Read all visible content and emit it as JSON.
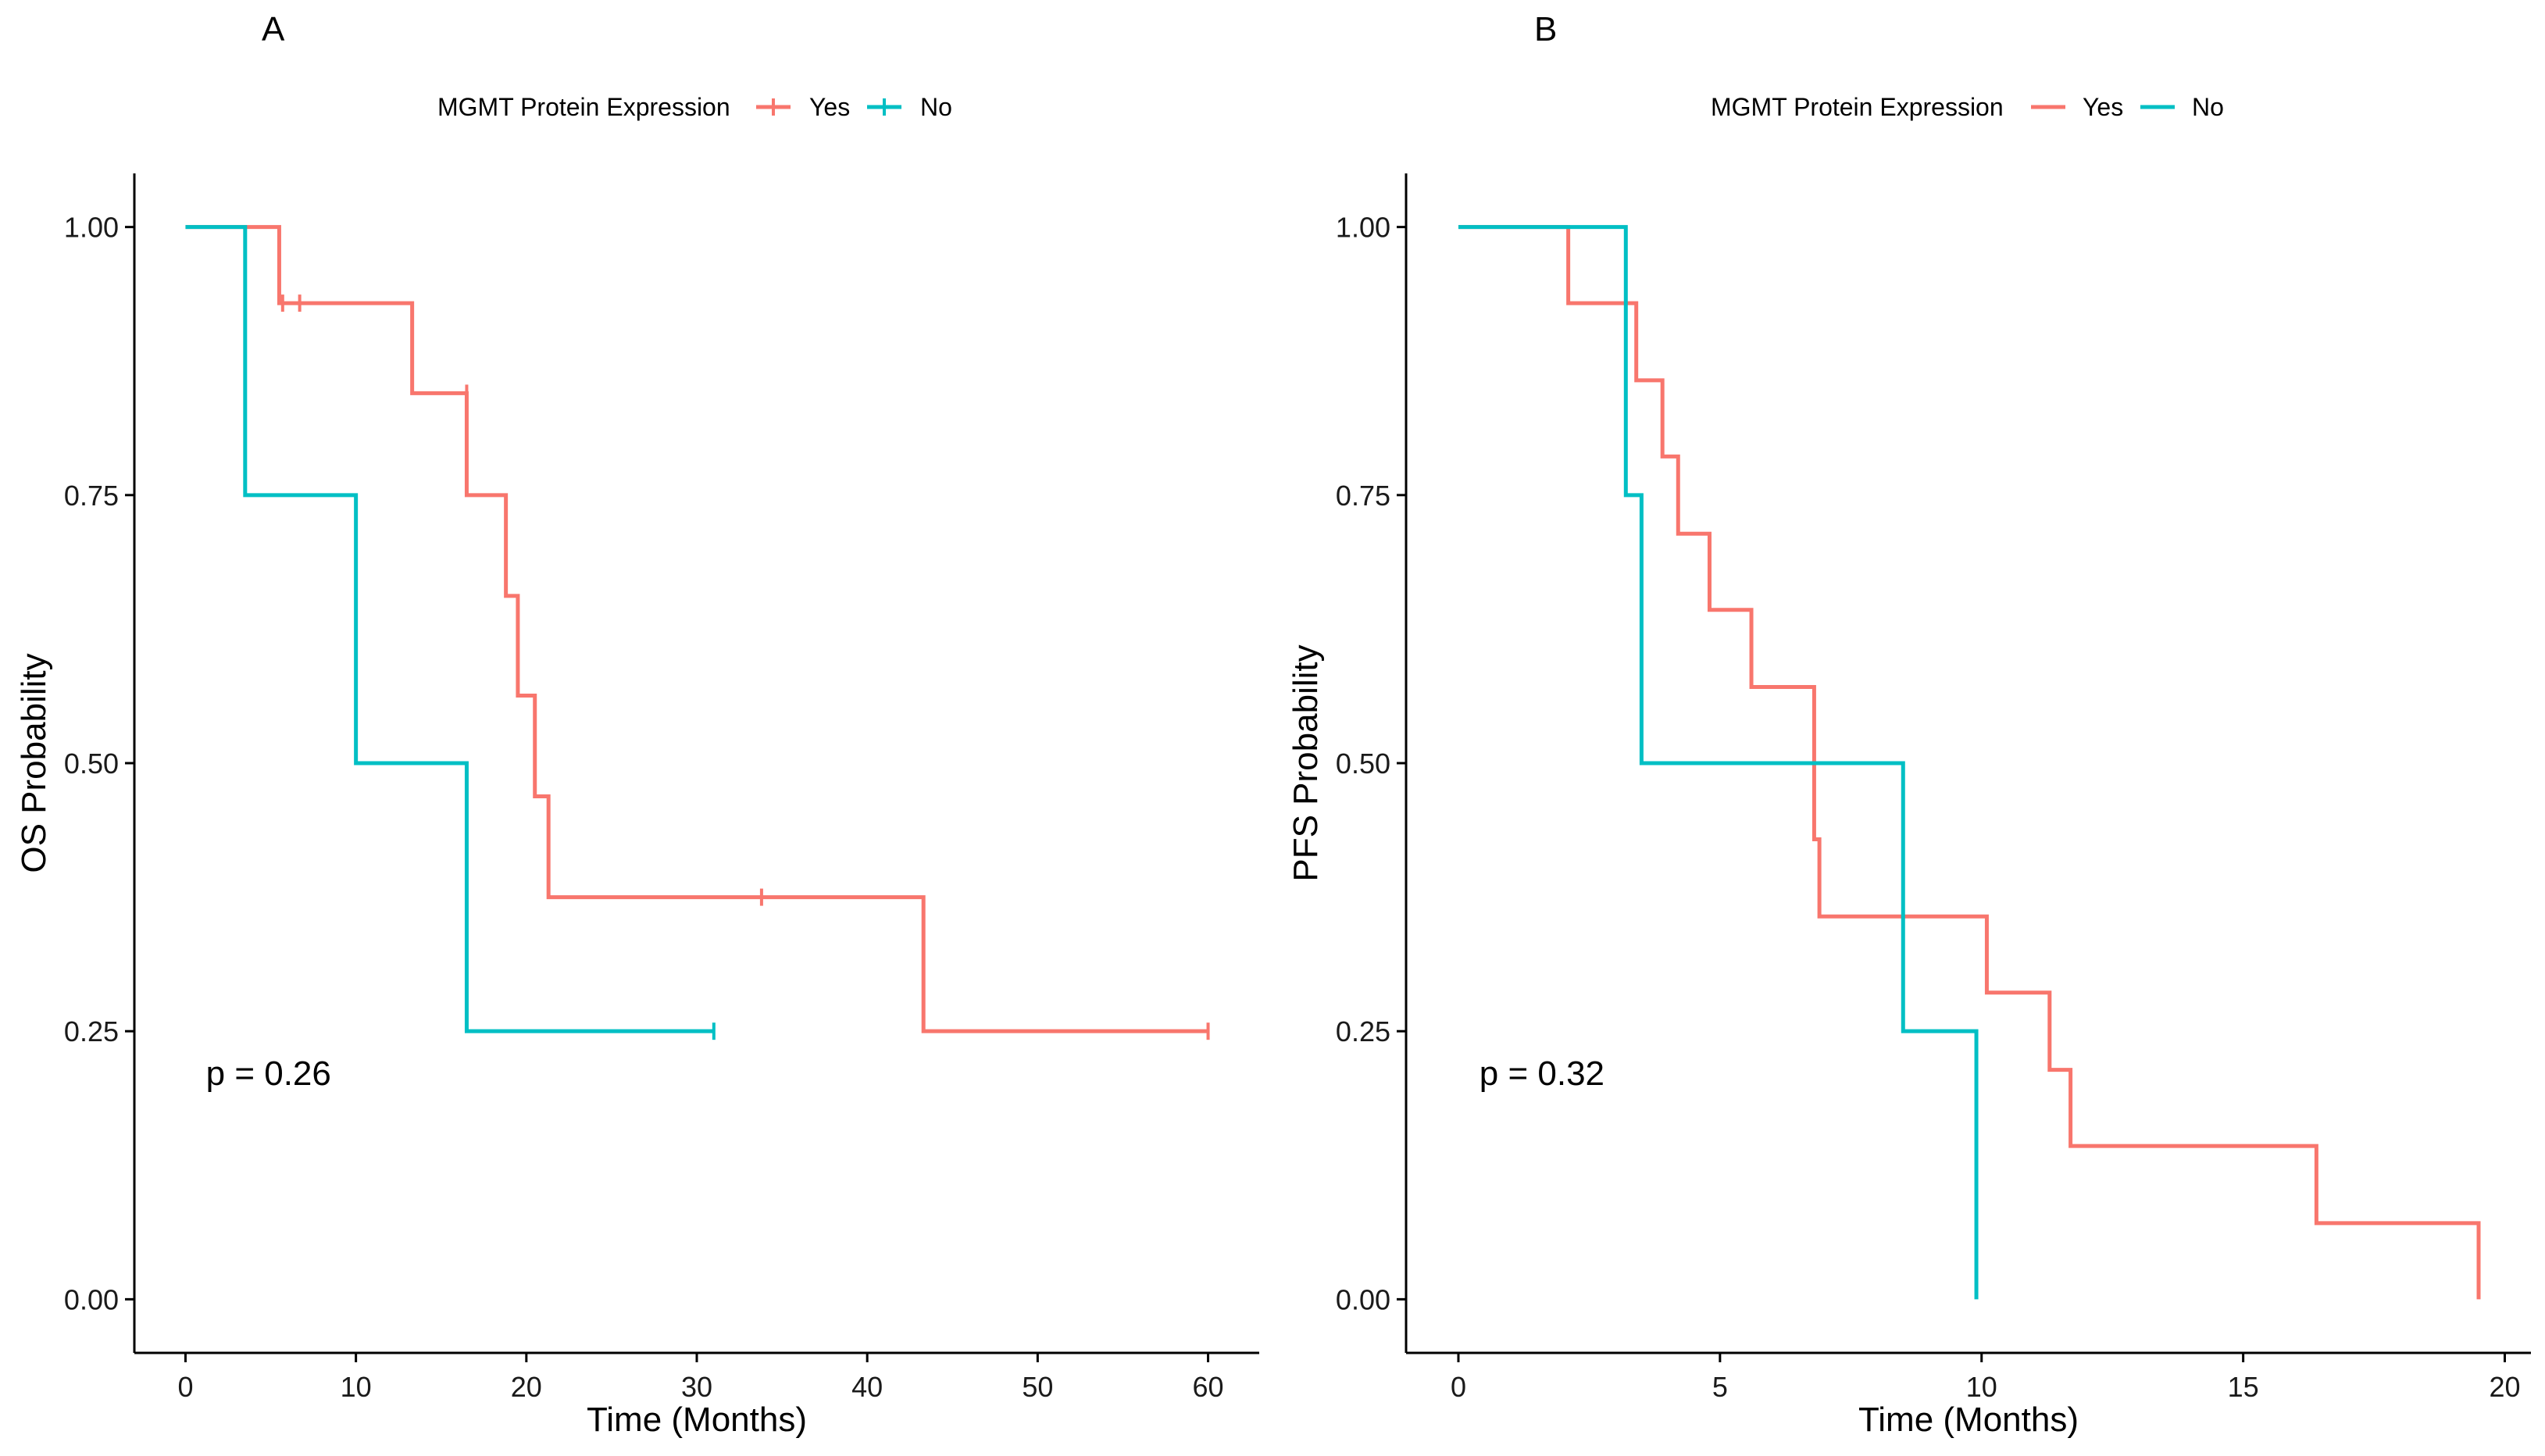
{
  "colors": {
    "yes": "#F8766D",
    "no": "#00BFC4",
    "axis": "#000000"
  },
  "chart_data": [
    {
      "type": "line",
      "panel": "A",
      "legend": {
        "title": "MGMT Protein Expression",
        "entries": [
          "Yes",
          "No"
        ],
        "placement": "top",
        "marker": "plus"
      },
      "xlabel": "Time (Months)",
      "ylabel": "OS Probability",
      "xlim": [
        -3,
        63
      ],
      "ylim": [
        -0.05,
        1.05
      ],
      "xticks": [
        0,
        10,
        20,
        30,
        40,
        50,
        60
      ],
      "xtick_labels": [
        "0",
        "10",
        "20",
        "30",
        "40",
        "50",
        "60"
      ],
      "yticks": [
        0,
        0.25,
        0.5,
        0.75,
        1
      ],
      "ytick_labels": [
        "0.00",
        "0.25",
        "0.50",
        "0.75",
        "1.00"
      ],
      "annotation": "p = 0.26",
      "annotation_pos": {
        "x": 1.2,
        "y": 0.2
      },
      "series": [
        {
          "name": "Yes",
          "color": "#F8766D",
          "steps": [
            [
              0,
              1
            ],
            [
              5.5,
              0.929
            ],
            [
              13.3,
              0.845
            ],
            [
              16.5,
              0.75
            ],
            [
              18.8,
              0.656
            ],
            [
              19.5,
              0.563
            ],
            [
              20.5,
              0.469
            ],
            [
              21.3,
              0.375
            ],
            [
              43.3,
              0.25
            ]
          ],
          "end": 60,
          "censored": [
            [
              5.7,
              0.929
            ],
            [
              6.7,
              0.929
            ],
            [
              16.5,
              0.845
            ],
            [
              33.8,
              0.375
            ],
            [
              60,
              0.25
            ]
          ]
        },
        {
          "name": "No",
          "color": "#00BFC4",
          "steps": [
            [
              0,
              1
            ],
            [
              3.5,
              0.75
            ],
            [
              10,
              0.5
            ],
            [
              16.5,
              0.25
            ]
          ],
          "end": 31,
          "censored": [
            [
              31,
              0.25
            ]
          ]
        }
      ]
    },
    {
      "type": "line",
      "panel": "B",
      "legend": {
        "title": "MGMT Protein Expression",
        "entries": [
          "Yes",
          "No"
        ],
        "placement": "top",
        "marker": "line"
      },
      "xlabel": "Time (Months)",
      "ylabel": "PFS Probability",
      "xlim": [
        -1,
        20.5
      ],
      "ylim": [
        -0.05,
        1.05
      ],
      "xticks": [
        0,
        5,
        10,
        15,
        20
      ],
      "xtick_labels": [
        "0",
        "5",
        "10",
        "15",
        "20"
      ],
      "yticks": [
        0,
        0.25,
        0.5,
        0.75,
        1
      ],
      "ytick_labels": [
        "0.00",
        "0.25",
        "0.50",
        "0.75",
        "1.00"
      ],
      "annotation": "p = 0.32",
      "annotation_pos": {
        "x": 0.4,
        "y": 0.2
      },
      "series": [
        {
          "name": "Yes",
          "color": "#F8766D",
          "steps": [
            [
              0,
              1
            ],
            [
              2.1,
              0.929
            ],
            [
              3.4,
              0.857
            ],
            [
              3.9,
              0.786
            ],
            [
              4.2,
              0.714
            ],
            [
              4.8,
              0.643
            ],
            [
              5.6,
              0.571
            ],
            [
              6.8,
              0.429
            ],
            [
              6.9,
              0.357
            ],
            [
              10.1,
              0.286
            ],
            [
              11.3,
              0.214
            ],
            [
              11.7,
              0.143
            ],
            [
              16.4,
              0.071
            ],
            [
              19.5,
              0
            ]
          ],
          "end": 19.5,
          "censored": []
        },
        {
          "name": "No",
          "color": "#00BFC4",
          "steps": [
            [
              0,
              1
            ],
            [
              3.2,
              0.75
            ],
            [
              3.5,
              0.5
            ],
            [
              8.5,
              0.25
            ],
            [
              9.9,
              0
            ]
          ],
          "end": 9.9,
          "censored": []
        }
      ]
    }
  ]
}
